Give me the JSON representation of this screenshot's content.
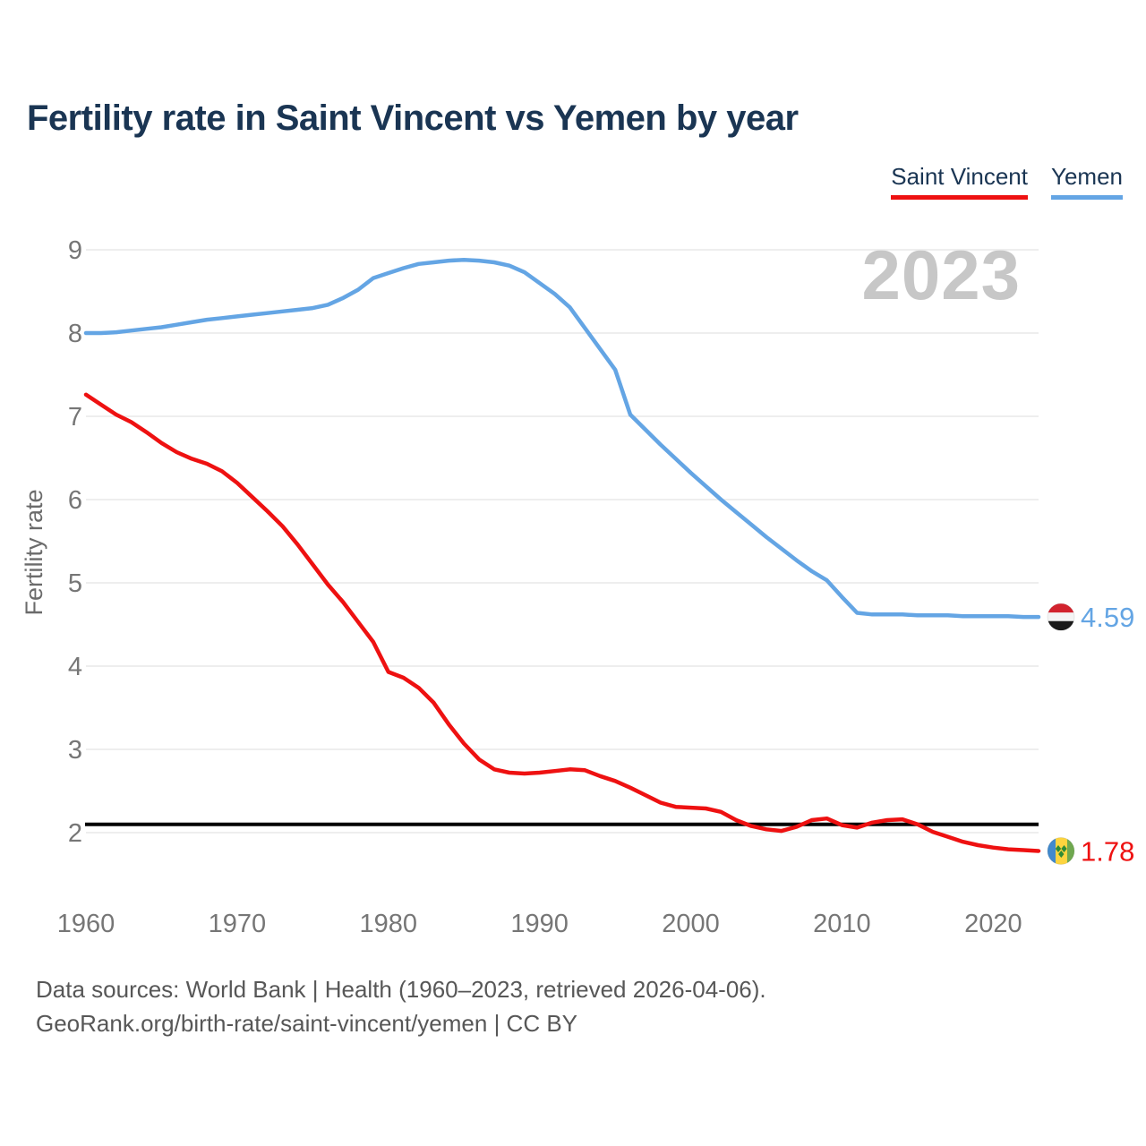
{
  "page": {
    "title": "Fertility rate in Saint Vincent vs Yemen by year"
  },
  "legend": {
    "items": [
      {
        "label": "Saint Vincent",
        "color": "#ee1111"
      },
      {
        "label": "Yemen",
        "color": "#64a5e4"
      }
    ]
  },
  "watermark": "2023",
  "footer": {
    "line1": "Data sources: World Bank | Health (1960–2023, retrieved 2026-04-06).",
    "line2": "GeoRank.org/birth-rate/saint-vincent/yemen | CC BY"
  },
  "chart_data": {
    "type": "line",
    "title": "Fertility rate in Saint Vincent vs Yemen by year",
    "xlabel": "",
    "ylabel": "Fertility rate",
    "grid": true,
    "legend_position": "top-right",
    "xlim": [
      1960,
      2023
    ],
    "ylim": [
      1.6,
      9.4
    ],
    "xticks": [
      1960,
      1970,
      1980,
      1990,
      2000,
      2010,
      2020
    ],
    "yticks": [
      2,
      3,
      4,
      5,
      6,
      7,
      8,
      9
    ],
    "reference_line": {
      "value": 2.1,
      "color": "#000000"
    },
    "x": [
      1960,
      1961,
      1962,
      1963,
      1964,
      1965,
      1966,
      1967,
      1968,
      1969,
      1970,
      1971,
      1972,
      1973,
      1974,
      1975,
      1976,
      1977,
      1978,
      1979,
      1980,
      1981,
      1982,
      1983,
      1984,
      1985,
      1986,
      1987,
      1988,
      1989,
      1990,
      1991,
      1992,
      1993,
      1994,
      1995,
      1996,
      1997,
      1998,
      1999,
      2000,
      2001,
      2002,
      2003,
      2004,
      2005,
      2006,
      2007,
      2008,
      2009,
      2010,
      2011,
      2012,
      2013,
      2014,
      2015,
      2016,
      2017,
      2018,
      2019,
      2020,
      2021,
      2022,
      2023
    ],
    "series": [
      {
        "name": "Saint Vincent",
        "color": "#ee1111",
        "flag": "saint-vincent",
        "end_label": "1.78",
        "values": [
          7.26,
          7.14,
          7.02,
          6.93,
          6.81,
          6.68,
          6.57,
          6.49,
          6.43,
          6.34,
          6.2,
          6.03,
          5.86,
          5.68,
          5.46,
          5.22,
          4.98,
          4.77,
          4.53,
          4.29,
          3.93,
          3.86,
          3.74,
          3.56,
          3.3,
          3.07,
          2.88,
          2.76,
          2.72,
          2.71,
          2.72,
          2.74,
          2.76,
          2.75,
          2.68,
          2.62,
          2.54,
          2.45,
          2.36,
          2.31,
          2.3,
          2.29,
          2.25,
          2.15,
          2.08,
          2.04,
          2.02,
          2.07,
          2.15,
          2.17,
          2.09,
          2.06,
          2.12,
          2.15,
          2.16,
          2.1,
          2.01,
          1.95,
          1.89,
          1.85,
          1.82,
          1.8,
          1.79,
          1.78
        ]
      },
      {
        "name": "Yemen",
        "color": "#64a5e4",
        "flag": "yemen",
        "end_label": "4.59",
        "values": [
          8.0,
          8.0,
          8.01,
          8.03,
          8.05,
          8.07,
          8.1,
          8.13,
          8.16,
          8.18,
          8.2,
          8.22,
          8.24,
          8.26,
          8.28,
          8.3,
          8.34,
          8.42,
          8.52,
          8.66,
          8.72,
          8.78,
          8.83,
          8.85,
          8.87,
          8.88,
          8.87,
          8.85,
          8.81,
          8.73,
          8.6,
          8.47,
          8.31,
          8.06,
          7.81,
          7.56,
          7.02,
          6.84,
          6.66,
          6.49,
          6.32,
          6.16,
          6.0,
          5.85,
          5.7,
          5.55,
          5.41,
          5.27,
          5.14,
          5.03,
          4.83,
          4.64,
          4.62,
          4.62,
          4.62,
          4.61,
          4.61,
          4.61,
          4.6,
          4.6,
          4.6,
          4.6,
          4.59,
          4.59
        ]
      }
    ],
    "flag_colors": {
      "yemen": {
        "top": "#d2232e",
        "middle": "#f4f4f4",
        "bottom": "#1a1a1a"
      },
      "saint_vincent": {
        "blue": "#4189cc",
        "yellow": "#fcd43f",
        "green": "#6fa84f",
        "diamond": "#2e8b36"
      }
    }
  }
}
